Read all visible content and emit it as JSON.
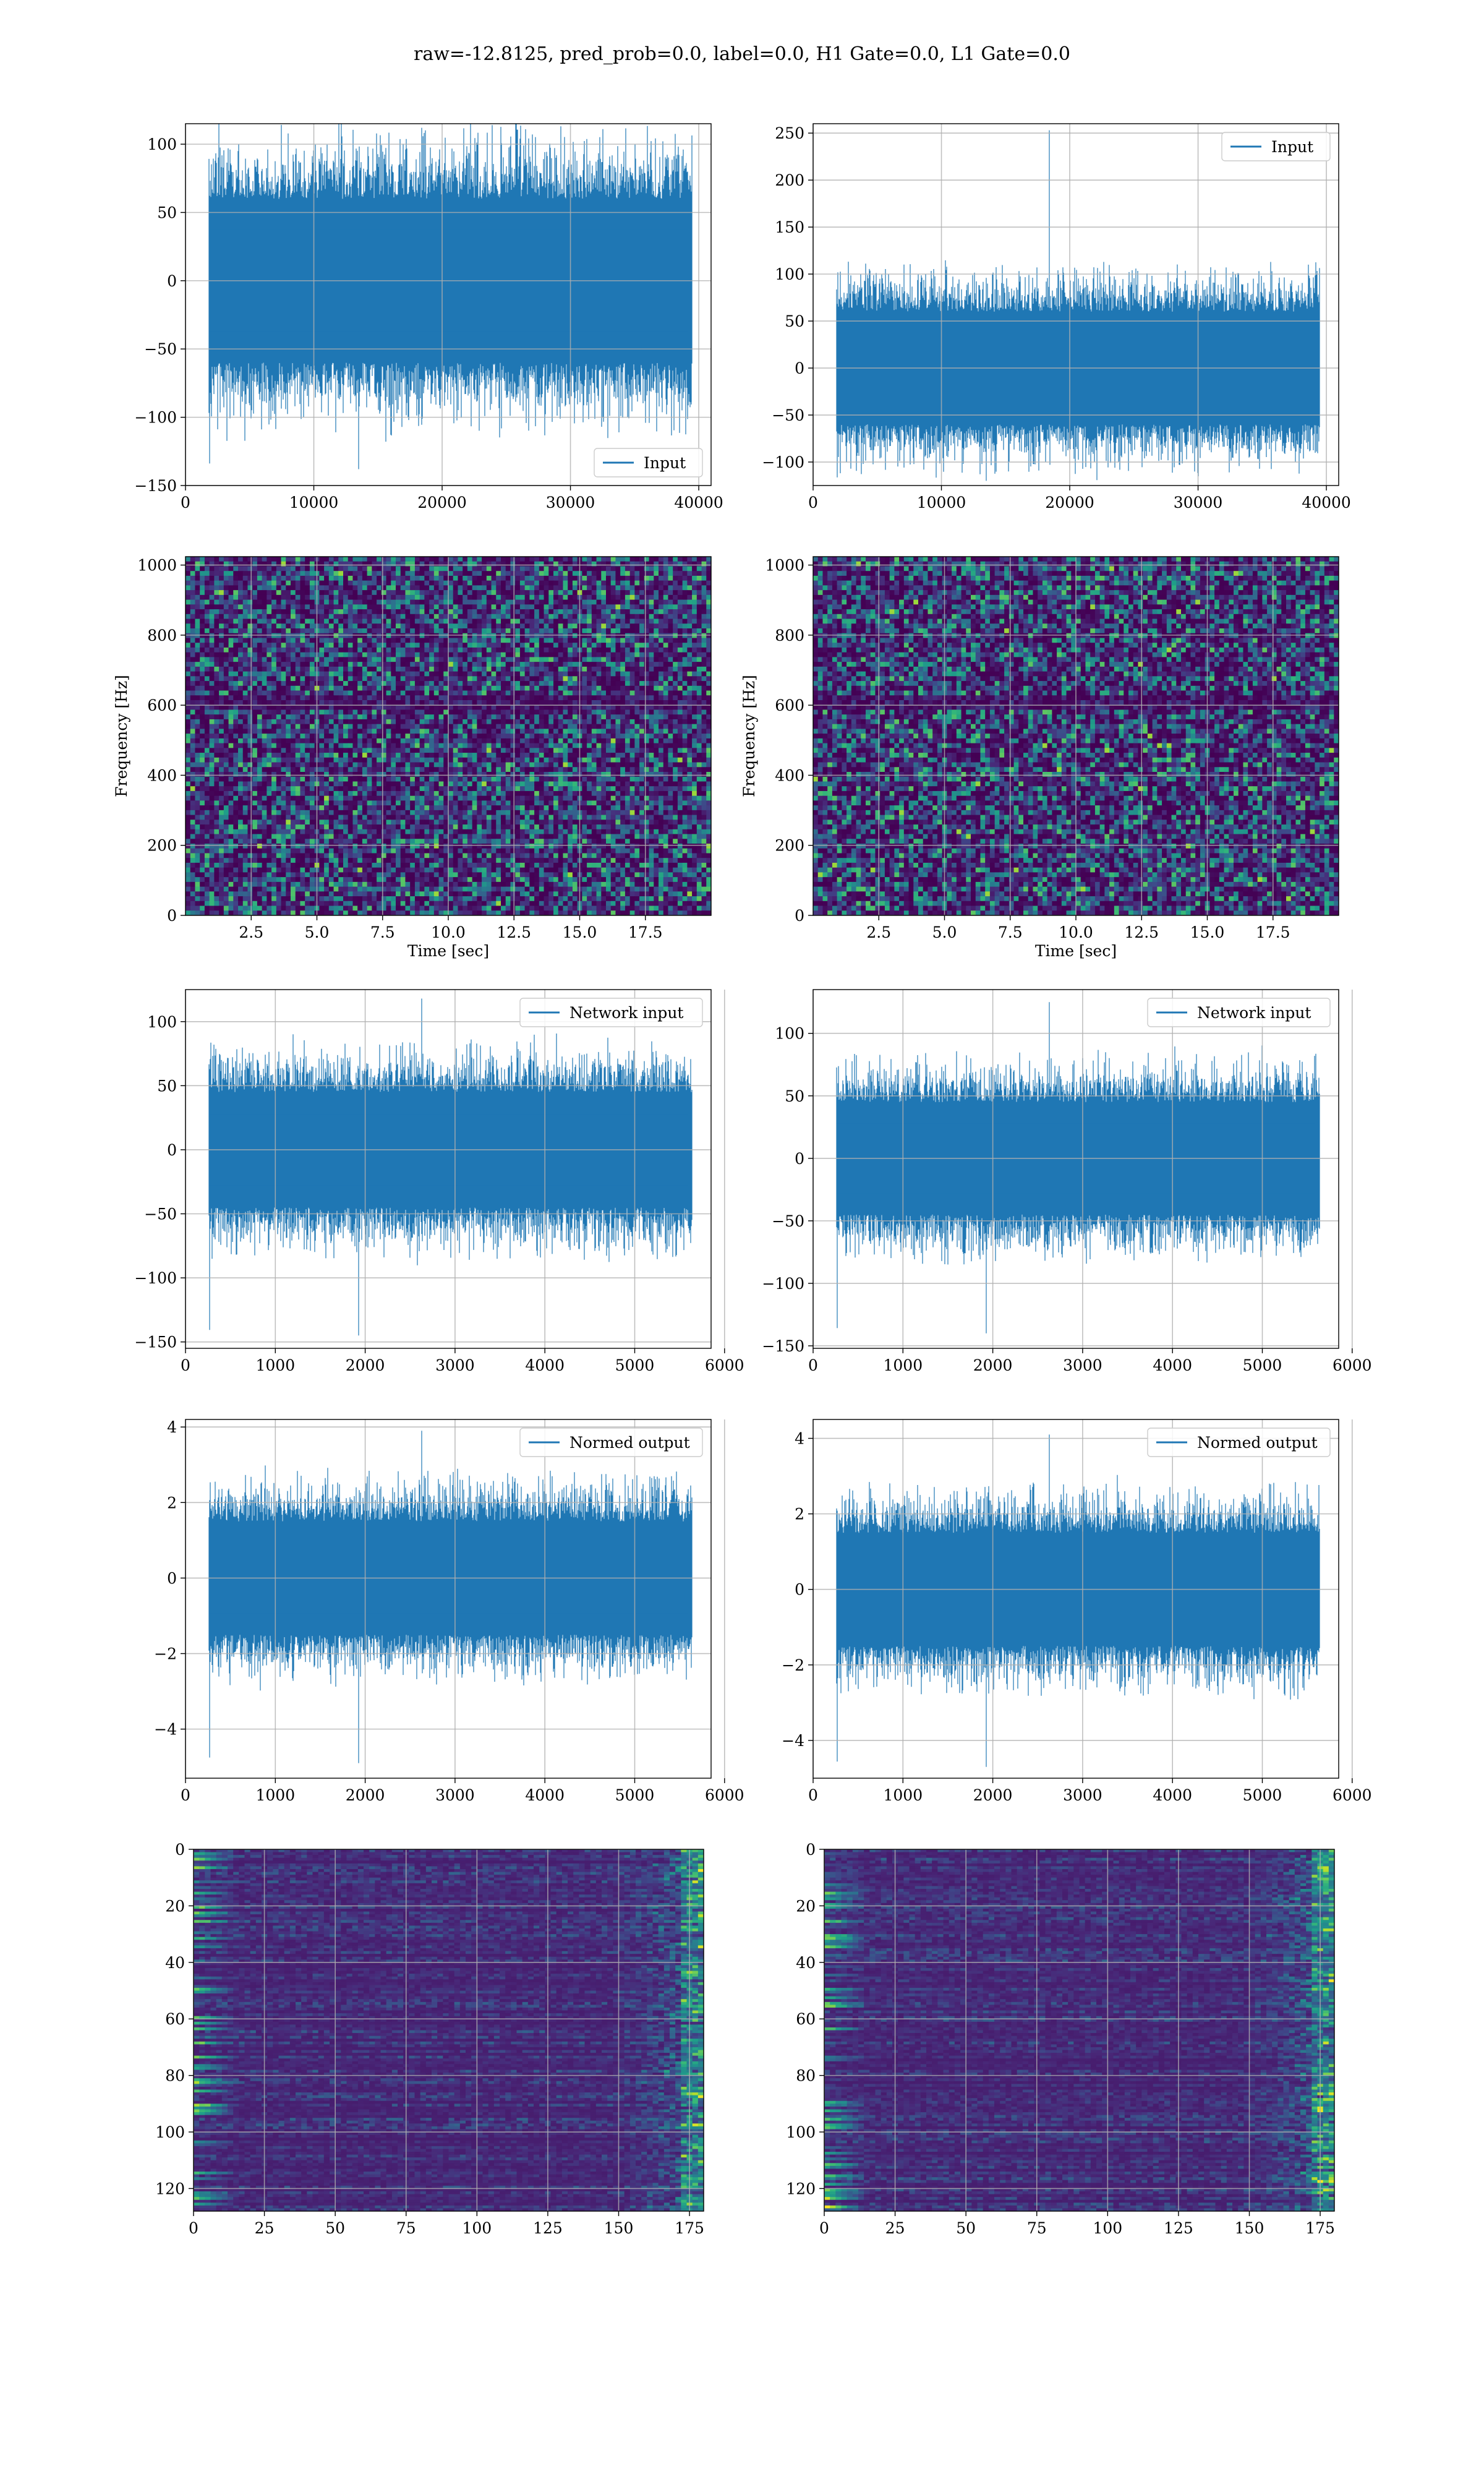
{
  "suptitle": "raw=-12.8125, pred_prob=0.0, label=0.0, H1 Gate=0.0, L1 Gate=0.0",
  "colors": {
    "line": "#1f77b4",
    "grid": "#b0b0b0",
    "viridis_low": "#440154",
    "viridis_high": "#fde725"
  },
  "chart_data": [
    {
      "type": "line",
      "xlim": [
        0,
        40960
      ],
      "ylim": [
        -150,
        115
      ],
      "grid": true,
      "legend_position": "lower-right",
      "series": [
        {
          "name": "Input",
          "amplitude": 60,
          "peak_max": 112,
          "peak_min": -138
        }
      ],
      "xticks": [
        "0",
        "10000",
        "20000",
        "30000",
        "40000"
      ],
      "yticks": [
        "−150",
        "−100",
        "−50",
        "0",
        "50",
        "100"
      ]
    },
    {
      "type": "line",
      "xlim": [
        0,
        40960
      ],
      "ylim": [
        -125,
        260
      ],
      "grid": true,
      "legend_position": "upper-right",
      "series": [
        {
          "name": "Input",
          "amplitude": 60,
          "peak_max": 253,
          "peak_min": -120
        }
      ],
      "xticks": [
        "0",
        "10000",
        "20000",
        "30000",
        "40000"
      ],
      "yticks": [
        "−100",
        "−50",
        "0",
        "50",
        "100",
        "150",
        "200",
        "250"
      ]
    },
    {
      "type": "heatmap",
      "xlabel": "Time [sec]",
      "ylabel": "Frequency [Hz]",
      "xlim": [
        0,
        20
      ],
      "ylim": [
        0,
        1024
      ],
      "grid": true,
      "xticks": [
        "2.5",
        "5.0",
        "7.5",
        "10.0",
        "12.5",
        "15.0",
        "17.5"
      ],
      "yticks": [
        "0",
        "200",
        "400",
        "600",
        "800",
        "1000"
      ]
    },
    {
      "type": "heatmap",
      "xlabel": "Time [sec]",
      "ylabel": "Frequency [Hz]",
      "xlim": [
        0,
        20
      ],
      "ylim": [
        0,
        1024
      ],
      "grid": true,
      "xticks": [
        "2.5",
        "5.0",
        "7.5",
        "10.0",
        "12.5",
        "15.0",
        "17.5"
      ],
      "yticks": [
        "0",
        "200",
        "400",
        "600",
        "800",
        "1000"
      ]
    },
    {
      "type": "line",
      "xlim": [
        0,
        5850
      ],
      "ylim": [
        -155,
        125
      ],
      "grid": true,
      "legend_position": "upper-right",
      "series": [
        {
          "name": "Network input",
          "amplitude": 45,
          "peak_max": 118,
          "peak_min": -145
        }
      ],
      "xticks": [
        "0",
        "1000",
        "2000",
        "3000",
        "4000",
        "5000",
        "6000"
      ],
      "yticks": [
        "−150",
        "−100",
        "−50",
        "0",
        "50",
        "100"
      ]
    },
    {
      "type": "line",
      "xlim": [
        0,
        5850
      ],
      "ylim": [
        -152,
        135
      ],
      "grid": true,
      "legend_position": "upper-right",
      "series": [
        {
          "name": "Network input",
          "amplitude": 45,
          "peak_max": 125,
          "peak_min": -140
        }
      ],
      "xticks": [
        "0",
        "1000",
        "2000",
        "3000",
        "4000",
        "5000",
        "6000"
      ],
      "yticks": [
        "−150",
        "−100",
        "−50",
        "0",
        "50",
        "100"
      ]
    },
    {
      "type": "line",
      "xlim": [
        0,
        5850
      ],
      "ylim": [
        -5.3,
        4.2
      ],
      "grid": true,
      "legend_position": "upper-right",
      "series": [
        {
          "name": "Normed output",
          "amplitude": 1.5,
          "peak_max": 3.9,
          "peak_min": -4.9
        }
      ],
      "xticks": [
        "0",
        "1000",
        "2000",
        "3000",
        "4000",
        "5000",
        "6000"
      ],
      "yticks": [
        "−4",
        "−2",
        "0",
        "2",
        "4"
      ]
    },
    {
      "type": "line",
      "xlim": [
        0,
        5850
      ],
      "ylim": [
        -5.0,
        4.5
      ],
      "grid": true,
      "legend_position": "upper-right",
      "series": [
        {
          "name": "Normed output",
          "amplitude": 1.5,
          "peak_max": 4.1,
          "peak_min": -4.7
        }
      ],
      "xticks": [
        "0",
        "1000",
        "2000",
        "3000",
        "4000",
        "5000",
        "6000"
      ],
      "yticks": [
        "−4",
        "−2",
        "0",
        "2",
        "4"
      ]
    },
    {
      "type": "heatmap",
      "xlim": [
        0,
        180
      ],
      "ylim": [
        128,
        0
      ],
      "grid": true,
      "xticks": [
        "0",
        "25",
        "50",
        "75",
        "100",
        "125",
        "150",
        "175"
      ],
      "yticks": [
        "0",
        "20",
        "40",
        "60",
        "80",
        "100",
        "120"
      ]
    },
    {
      "type": "heatmap",
      "xlim": [
        0,
        180
      ],
      "ylim": [
        128,
        0
      ],
      "grid": true,
      "xticks": [
        "0",
        "25",
        "50",
        "75",
        "100",
        "125",
        "150",
        "175"
      ],
      "yticks": [
        "0",
        "20",
        "40",
        "60",
        "80",
        "100",
        "120"
      ]
    }
  ]
}
